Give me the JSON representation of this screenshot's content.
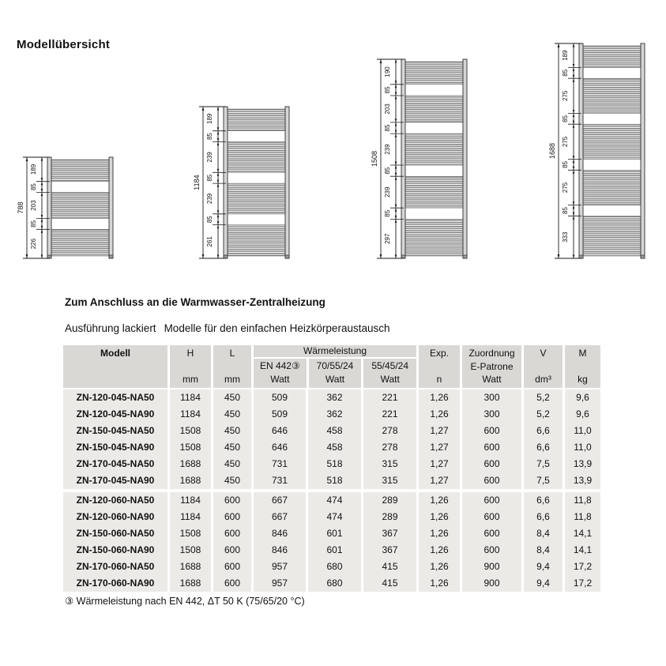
{
  "title": "Modellübersicht",
  "section": {
    "heading": "Zum Anschluss an die Warmwasser-Zentralheizung",
    "subheading_left": "Ausführung lackiert",
    "subheading_right": "Modelle für den einfachen Heizkörperaustausch"
  },
  "footnote": "③ Wärmeleistung nach EN 442, ΔT 50 K (75/65/20 °C)",
  "colors": {
    "header_bg": "#d9d8d4",
    "row_bg": "#eceae7",
    "text": "#111111",
    "radiator_tube": "#c9c9c9",
    "radiator_post": "#d6d6d6"
  },
  "diagrams": [
    {
      "name": "radiator-788",
      "total": "788",
      "segments": [
        {
          "label": "189",
          "type": "tubes"
        },
        {
          "label": "85",
          "type": "gap"
        },
        {
          "label": "203",
          "type": "tubes"
        },
        {
          "label": "85",
          "type": "gap"
        },
        {
          "label": "226",
          "type": "tubes"
        }
      ]
    },
    {
      "name": "radiator-1184",
      "total": "1184",
      "segments": [
        {
          "label": "189",
          "type": "tubes"
        },
        {
          "label": "85",
          "type": "gap"
        },
        {
          "label": "239",
          "type": "tubes"
        },
        {
          "label": "85",
          "type": "gap"
        },
        {
          "label": "239",
          "type": "tubes"
        },
        {
          "label": "85",
          "type": "gap"
        },
        {
          "label": "261",
          "type": "tubes"
        }
      ]
    },
    {
      "name": "radiator-1508",
      "total": "1508",
      "segments": [
        {
          "label": "190",
          "type": "tubes"
        },
        {
          "label": "85",
          "type": "gap"
        },
        {
          "label": "203",
          "type": "tubes"
        },
        {
          "label": "85",
          "type": "gap"
        },
        {
          "label": "239",
          "type": "tubes"
        },
        {
          "label": "85",
          "type": "gap"
        },
        {
          "label": "239",
          "type": "tubes"
        },
        {
          "label": "85",
          "type": "gap"
        },
        {
          "label": "297",
          "type": "tubes"
        }
      ]
    },
    {
      "name": "radiator-1688",
      "total": "1688",
      "segments": [
        {
          "label": "189",
          "type": "tubes"
        },
        {
          "label": "85",
          "type": "gap"
        },
        {
          "label": "275",
          "type": "tubes"
        },
        {
          "label": "85",
          "type": "gap"
        },
        {
          "label": "275",
          "type": "tubes"
        },
        {
          "label": "85",
          "type": "gap"
        },
        {
          "label": "275",
          "type": "tubes"
        },
        {
          "label": "85",
          "type": "gap"
        },
        {
          "label": "333",
          "type": "tubes"
        }
      ]
    }
  ],
  "table": {
    "group_label": "Wärmeleistung",
    "group_break_after": 6,
    "columns": [
      {
        "id": "modell",
        "label": "Modell",
        "unit": "",
        "bold": true
      },
      {
        "id": "h",
        "label": "H",
        "unit": "mm"
      },
      {
        "id": "l",
        "label": "L",
        "unit": "mm"
      },
      {
        "id": "en442",
        "label": "EN 442③",
        "unit": "Watt",
        "group": "Wärmeleistung"
      },
      {
        "id": "w705524",
        "label": "70/55/24",
        "unit": "Watt",
        "group": "Wärmeleistung"
      },
      {
        "id": "w554524",
        "label": "55/45/24",
        "unit": "Watt",
        "group": "Wärmeleistung"
      },
      {
        "id": "exp",
        "label": "Exp.",
        "unit": "n"
      },
      {
        "id": "zuordnung",
        "label": "Zuordnung",
        "label2": "E-Patrone",
        "unit": "Watt"
      },
      {
        "id": "v",
        "label": "V",
        "unit": "dm³"
      },
      {
        "id": "m",
        "label": "M",
        "unit": "kg"
      }
    ],
    "rows": [
      [
        "ZN-120-045-NA50",
        "1184",
        "450",
        "509",
        "362",
        "221",
        "1,26",
        "300",
        "5,2",
        "9,6"
      ],
      [
        "ZN-120-045-NA90",
        "1184",
        "450",
        "509",
        "362",
        "221",
        "1,26",
        "300",
        "5,2",
        "9,6"
      ],
      [
        "ZN-150-045-NA50",
        "1508",
        "450",
        "646",
        "458",
        "278",
        "1,27",
        "600",
        "6,6",
        "11,0"
      ],
      [
        "ZN-150-045-NA90",
        "1508",
        "450",
        "646",
        "458",
        "278",
        "1,27",
        "600",
        "6,6",
        "11,0"
      ],
      [
        "ZN-170-045-NA50",
        "1688",
        "450",
        "731",
        "518",
        "315",
        "1,27",
        "600",
        "7,5",
        "13,9"
      ],
      [
        "ZN-170-045-NA90",
        "1688",
        "450",
        "731",
        "518",
        "315",
        "1,27",
        "600",
        "7,5",
        "13,9"
      ],
      [
        "ZN-120-060-NA50",
        "1184",
        "600",
        "667",
        "474",
        "289",
        "1,26",
        "600",
        "6,6",
        "11,8"
      ],
      [
        "ZN-120-060-NA90",
        "1184",
        "600",
        "667",
        "474",
        "289",
        "1,26",
        "600",
        "6,6",
        "11,8"
      ],
      [
        "ZN-150-060-NA50",
        "1508",
        "600",
        "846",
        "601",
        "367",
        "1,26",
        "600",
        "8,4",
        "14,1"
      ],
      [
        "ZN-150-060-NA90",
        "1508",
        "600",
        "846",
        "601",
        "367",
        "1,26",
        "600",
        "8,4",
        "14,1"
      ],
      [
        "ZN-170-060-NA50",
        "1688",
        "600",
        "957",
        "680",
        "415",
        "1,26",
        "900",
        "9,4",
        "17,2"
      ],
      [
        "ZN-170-060-NA90",
        "1688",
        "600",
        "957",
        "680",
        "415",
        "1,26",
        "900",
        "9,4",
        "17,2"
      ]
    ]
  }
}
